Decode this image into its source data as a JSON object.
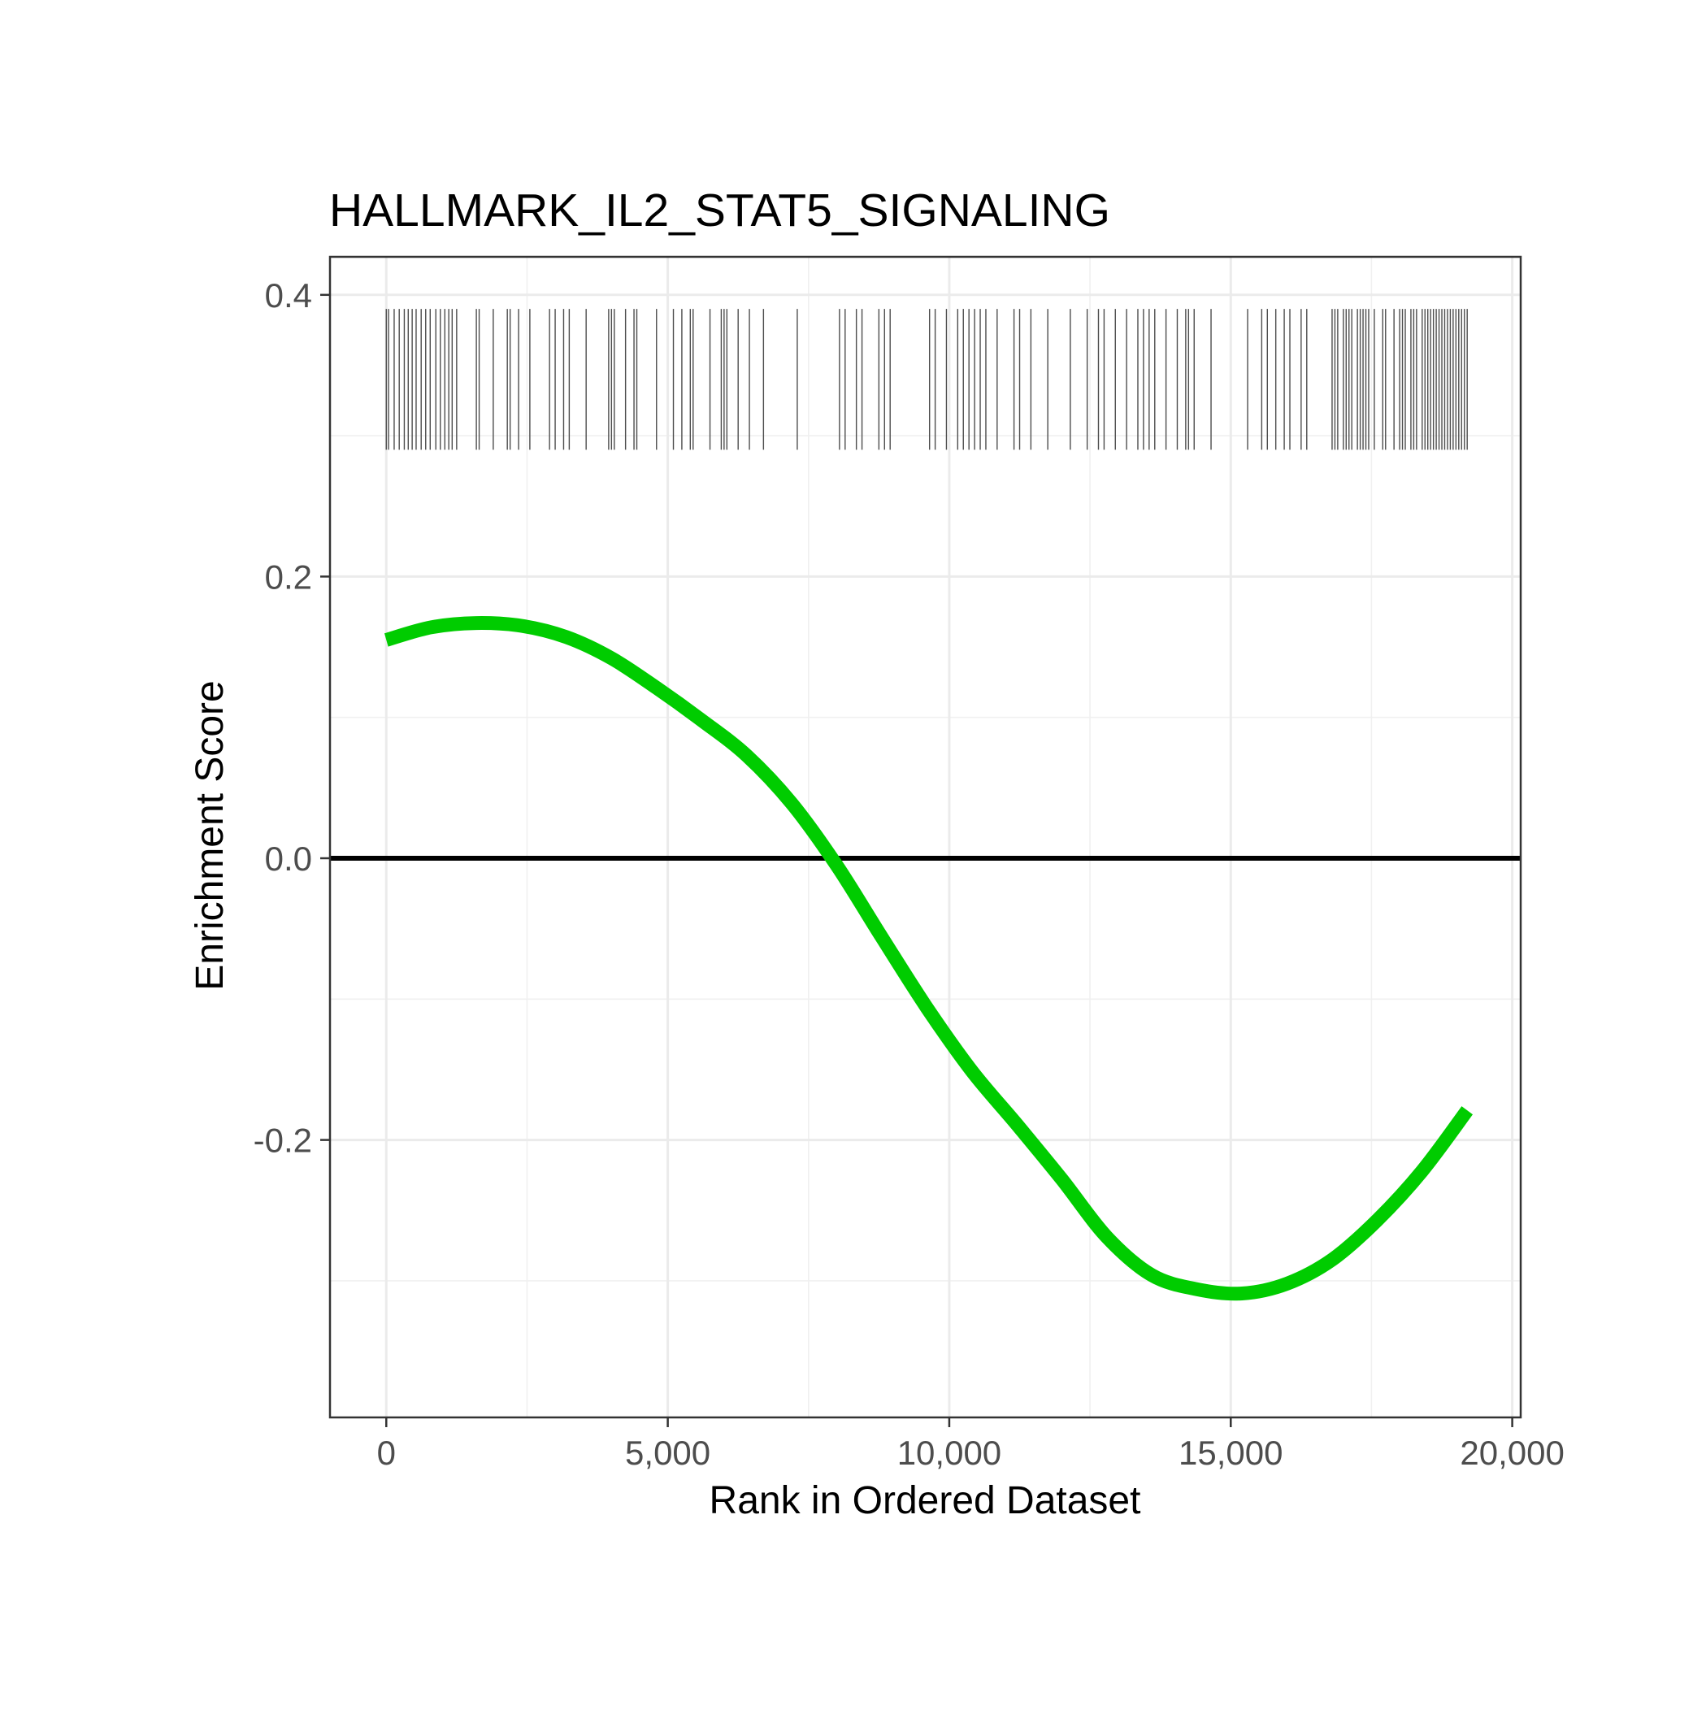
{
  "chart_data": {
    "type": "line",
    "title": "HALLMARK_IL2_STAT5_SIGNALING",
    "xlabel": "Rank in Ordered Dataset",
    "ylabel": "Enrichment Score",
    "xlim": [
      -1000,
      20150
    ],
    "ylim": [
      -0.397,
      0.427
    ],
    "x_ticks": [
      0,
      5000,
      10000,
      15000,
      20000
    ],
    "x_tick_labels": [
      "0",
      "5,000",
      "10,000",
      "15,000",
      "20,000"
    ],
    "y_ticks": [
      -0.2,
      0.0,
      0.2,
      0.4
    ],
    "y_tick_labels": [
      "-0.2",
      "0.0",
      "0.2",
      "0.4"
    ],
    "grid": true,
    "reference_line": {
      "y": 0,
      "color": "#000000"
    },
    "series": [
      {
        "color": "#00cc00",
        "x": [
          0,
          800,
          1600,
          2400,
          3200,
          4000,
          4800,
          5600,
          6400,
          7200,
          8000,
          8800,
          9600,
          10400,
          11200,
          12000,
          12800,
          13600,
          14400,
          15200,
          16000,
          16800,
          17600,
          18400,
          19200
        ],
        "y": [
          0.155,
          0.164,
          0.167,
          0.165,
          0.157,
          0.142,
          0.121,
          0.098,
          0.073,
          0.039,
          -0.005,
          -0.056,
          -0.106,
          -0.151,
          -0.189,
          -0.228,
          -0.269,
          -0.296,
          -0.306,
          -0.309,
          -0.302,
          -0.285,
          -0.257,
          -0.222,
          -0.179
        ]
      }
    ],
    "gene_hits": {
      "y_range": [
        0.29,
        0.39
      ],
      "color": "#4d4d4d",
      "positions": [
        0,
        40,
        140,
        230,
        320,
        390,
        460,
        530,
        620,
        700,
        780,
        880,
        960,
        1040,
        1110,
        1170,
        1250,
        1600,
        1650,
        1900,
        2150,
        2200,
        2350,
        2550,
        2900,
        3000,
        3150,
        3250,
        3550,
        3950,
        4000,
        4050,
        4250,
        4400,
        4450,
        4800,
        5100,
        5250,
        5400,
        5450,
        5750,
        5950,
        6000,
        6050,
        6250,
        6450,
        6700,
        7300,
        8050,
        8150,
        8350,
        8450,
        8750,
        8850,
        8950,
        9650,
        9750,
        9950,
        10150,
        10250,
        10350,
        10450,
        10550,
        10650,
        10850,
        11150,
        11250,
        11450,
        11750,
        12150,
        12450,
        12650,
        12750,
        12950,
        13150,
        13350,
        13450,
        13550,
        13650,
        13850,
        14050,
        14200,
        14250,
        14350,
        14650,
        15300,
        15550,
        15650,
        15800,
        15950,
        16050,
        16250,
        16350,
        16800,
        16850,
        16900,
        17000,
        17050,
        17100,
        17150,
        17250,
        17300,
        17350,
        17400,
        17450,
        17550,
        17700,
        17750,
        17900,
        18000,
        18050,
        18100,
        18200,
        18250,
        18300,
        18400,
        18450,
        18500,
        18550,
        18600,
        18650,
        18700,
        18750,
        18800,
        18850,
        18900,
        18950,
        19000,
        19050,
        19100,
        19150,
        19200
      ]
    }
  }
}
